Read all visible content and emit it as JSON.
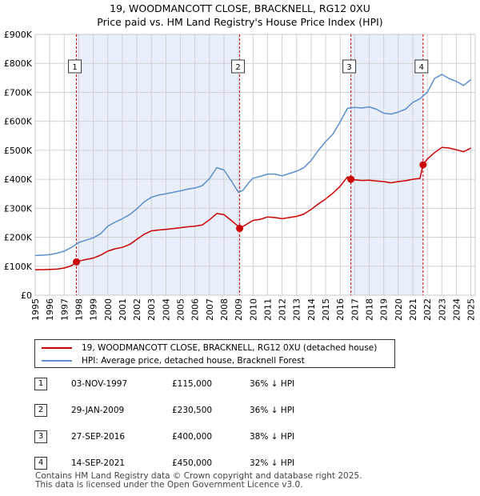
{
  "title": {
    "line1": "19, WOODMANCOTT CLOSE, BRACKNELL, RG12 0XU",
    "line2": "Price paid vs. HM Land Registry's House Price Index (HPI)"
  },
  "colors": {
    "property": "#cc0000",
    "hpi": "#5b8fd0",
    "shade": "#e8eefa",
    "grid": "#d0d0d0",
    "vline": "#cc0000"
  },
  "chart_data": {
    "type": "line",
    "title": "Price paid vs. HM Land Registry's House Price Index (HPI)",
    "xlim": [
      1995,
      2025.3
    ],
    "ylim": [
      0,
      900000
    ],
    "x_ticks": [
      "1995",
      "1996",
      "1997",
      "1998",
      "1999",
      "2000",
      "2001",
      "2002",
      "2003",
      "2004",
      "2005",
      "2006",
      "2007",
      "2008",
      "2009",
      "2010",
      "2011",
      "2012",
      "2013",
      "2014",
      "2015",
      "2016",
      "2017",
      "2018",
      "2019",
      "2020",
      "2021",
      "2022",
      "2023",
      "2024",
      "2025"
    ],
    "y_ticks": [
      {
        "value": 0,
        "label": "£0"
      },
      {
        "value": 100000,
        "label": "£100K"
      },
      {
        "value": 200000,
        "label": "£200K"
      },
      {
        "value": 300000,
        "label": "£300K"
      },
      {
        "value": 400000,
        "label": "£400K"
      },
      {
        "value": 500000,
        "label": "£500K"
      },
      {
        "value": 600000,
        "label": "£600K"
      },
      {
        "value": 700000,
        "label": "£700K"
      },
      {
        "value": 800000,
        "label": "£800K"
      },
      {
        "value": 900000,
        "label": "£900K"
      }
    ],
    "shaded_ranges": [
      [
        1997.84,
        2009.08
      ],
      [
        2016.74,
        2021.71
      ]
    ],
    "series": [
      {
        "name": "19, WOODMANCOTT CLOSE, BRACKNELL, RG12 0XU (detached house)",
        "color": "#cc0000",
        "x": [
          1995.0,
          1995.5,
          1996.0,
          1996.5,
          1997.0,
          1997.5,
          1997.84,
          1998.0,
          1998.5,
          1999.0,
          1999.5,
          2000.0,
          2000.5,
          2001.0,
          2001.5,
          2002.0,
          2002.5,
          2003.0,
          2003.5,
          2004.0,
          2004.5,
          2005.0,
          2005.5,
          2006.0,
          2006.5,
          2007.0,
          2007.5,
          2008.0,
          2008.5,
          2009.0,
          2009.08,
          2009.5,
          2010.0,
          2010.5,
          2011.0,
          2011.5,
          2012.0,
          2012.5,
          2013.0,
          2013.5,
          2014.0,
          2014.5,
          2015.0,
          2015.5,
          2016.0,
          2016.5,
          2016.74,
          2017.0,
          2017.5,
          2018.0,
          2018.5,
          2019.0,
          2019.5,
          2020.0,
          2020.5,
          2021.0,
          2021.5,
          2021.71,
          2022.0,
          2022.5,
          2023.0,
          2023.5,
          2024.0,
          2024.5,
          2025.0
        ],
        "y": [
          88000,
          88000,
          89000,
          90000,
          94000,
          102000,
          115000,
          118000,
          123000,
          128000,
          138000,
          152000,
          160000,
          165000,
          175000,
          193000,
          210000,
          222000,
          225000,
          227000,
          230000,
          233000,
          236000,
          238000,
          242000,
          260000,
          282000,
          278000,
          258000,
          237000,
          230500,
          243000,
          258000,
          262000,
          270000,
          268000,
          264000,
          268000,
          272000,
          280000,
          296000,
          315000,
          332000,
          352000,
          376000,
          408000,
          400000,
          398000,
          396000,
          397000,
          394000,
          392000,
          388000,
          392000,
          395000,
          400000,
          403000,
          450000,
          470000,
          492000,
          510000,
          508000,
          502000,
          495000,
          508000
        ]
      },
      {
        "name": "HPI: Average price, detached house, Bracknell Forest",
        "color": "#5b8fd0",
        "x": [
          1995.0,
          1995.5,
          1996.0,
          1996.5,
          1997.0,
          1997.5,
          1998.0,
          1998.5,
          1999.0,
          1999.5,
          2000.0,
          2000.5,
          2001.0,
          2001.5,
          2002.0,
          2002.5,
          2003.0,
          2003.5,
          2004.0,
          2004.5,
          2005.0,
          2005.5,
          2006.0,
          2006.5,
          2007.0,
          2007.5,
          2008.0,
          2008.5,
          2009.0,
          2009.3,
          2009.7,
          2010.0,
          2010.5,
          2011.0,
          2011.5,
          2012.0,
          2012.5,
          2013.0,
          2013.5,
          2014.0,
          2014.5,
          2015.0,
          2015.5,
          2016.0,
          2016.5,
          2017.0,
          2017.5,
          2018.0,
          2018.5,
          2019.0,
          2019.5,
          2020.0,
          2020.5,
          2021.0,
          2021.5,
          2022.0,
          2022.5,
          2023.0,
          2023.5,
          2024.0,
          2024.5,
          2025.0
        ],
        "y": [
          137000,
          138000,
          140000,
          145000,
          152000,
          165000,
          182000,
          190000,
          198000,
          212000,
          238000,
          252000,
          264000,
          278000,
          298000,
          322000,
          338000,
          346000,
          350000,
          355000,
          360000,
          366000,
          370000,
          378000,
          402000,
          440000,
          432000,
          395000,
          355000,
          362000,
          388000,
          404000,
          410000,
          418000,
          418000,
          412000,
          420000,
          428000,
          440000,
          465000,
          500000,
          530000,
          556000,
          598000,
          645000,
          648000,
          646000,
          650000,
          642000,
          628000,
          625000,
          632000,
          642000,
          665000,
          678000,
          700000,
          748000,
          762000,
          748000,
          738000,
          724000,
          744000
        ]
      }
    ],
    "sales": [
      {
        "id": "1",
        "x": 1997.84,
        "y": 115000
      },
      {
        "id": "2",
        "x": 2009.08,
        "y": 230500
      },
      {
        "id": "3",
        "x": 2016.74,
        "y": 400000
      },
      {
        "id": "4",
        "x": 2021.71,
        "y": 450000
      }
    ]
  },
  "legend": {
    "property": "19, WOODMANCOTT CLOSE, BRACKNELL, RG12 0XU (detached house)",
    "hpi": "HPI: Average price, detached house, Bracknell Forest"
  },
  "sales_table": [
    {
      "num": "1",
      "date": "03-NOV-1997",
      "price": "£115,000",
      "hpi": "36% ↓ HPI"
    },
    {
      "num": "2",
      "date": "29-JAN-2009",
      "price": "£230,500",
      "hpi": "36% ↓ HPI"
    },
    {
      "num": "3",
      "date": "27-SEP-2016",
      "price": "£400,000",
      "hpi": "38% ↓ HPI"
    },
    {
      "num": "4",
      "date": "14-SEP-2021",
      "price": "£450,000",
      "hpi": "32% ↓ HPI"
    }
  ],
  "footer": {
    "line1": "Contains HM Land Registry data © Crown copyright and database right 2025.",
    "line2": "This data is licensed under the Open Government Licence v3.0."
  }
}
